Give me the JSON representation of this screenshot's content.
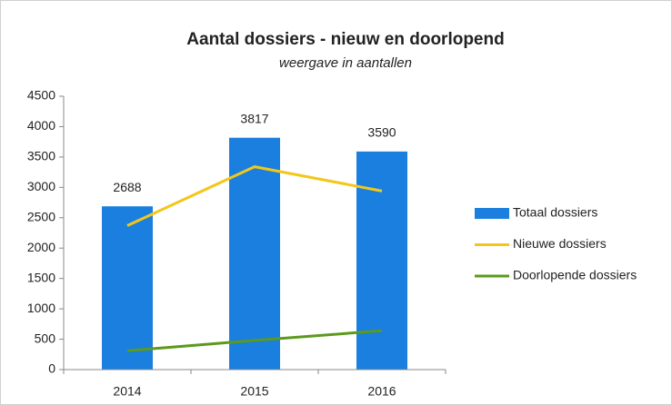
{
  "chart_data": {
    "type": "bar",
    "title": "Aantal dossiers - nieuw en doorlopend",
    "subtitle": "weergave in aantallen",
    "categories": [
      "2014",
      "2015",
      "2016"
    ],
    "series": [
      {
        "name": "Totaal dossiers",
        "type": "bar",
        "color": "#1a7fde",
        "values": [
          2688,
          3817,
          3590
        ],
        "data_labels": true
      },
      {
        "name": "Nieuwe dossiers",
        "type": "line",
        "color": "#f2c71b",
        "values": [
          2370,
          3340,
          2940
        ]
      },
      {
        "name": "Doorlopende dossiers",
        "type": "line",
        "color": "#5b9a1c",
        "values": [
          310,
          480,
          640
        ]
      }
    ],
    "ylim": [
      0,
      4500
    ],
    "yticks": [
      0,
      500,
      1000,
      1500,
      2000,
      2500,
      3000,
      3500,
      4000,
      4500
    ],
    "grid": false,
    "legend": "right"
  }
}
